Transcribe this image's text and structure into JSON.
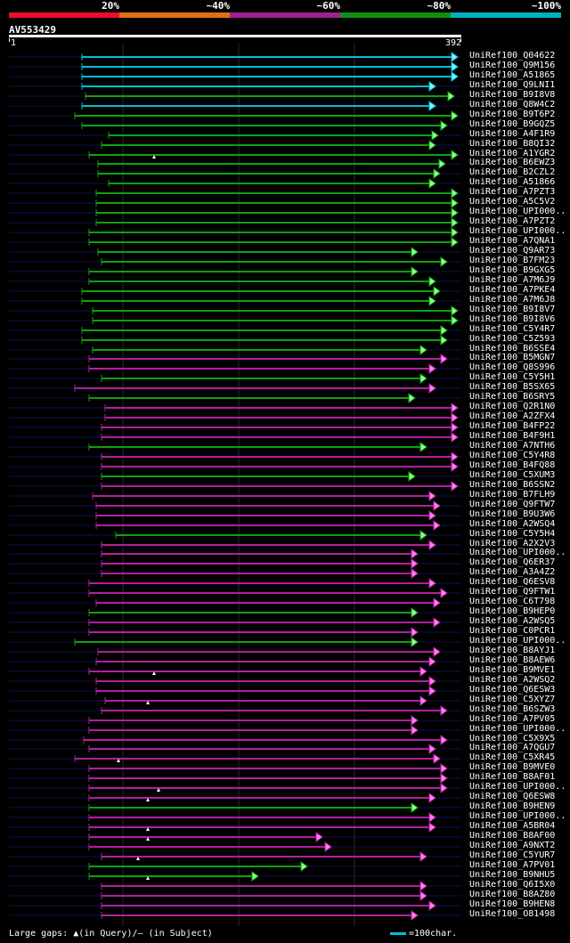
{
  "scale": {
    "segments": [
      {
        "label": "20%",
        "color": "#e8102a"
      },
      {
        "label": "~40%",
        "color": "#e07010"
      },
      {
        "label": "~60%",
        "color": "#a02090"
      },
      {
        "label": "~80%",
        "color": "#109010"
      },
      {
        "label": "~100%",
        "color": "#00b0c0"
      }
    ]
  },
  "query": {
    "id": "AV553429",
    "start": "1",
    "end": "392"
  },
  "legend": {
    "gaps": "Large gaps: ▲(in Query)/– (in Subject)",
    "scale": "=100char."
  },
  "hits": [
    {
      "name": "UniRef100_Q04622",
      "color": "#00c0d8"
    },
    {
      "name": "UniRef100_Q9M156",
      "color": "#00c0d8"
    },
    {
      "name": "UniRef100_A51865",
      "color": "#00c0d8"
    },
    {
      "name": "UniRef100_Q9LNI1",
      "color": "#00c0d8"
    },
    {
      "name": "UniRef100_B9I8V8",
      "color": "#10a010"
    },
    {
      "name": "UniRef100_Q8W4C2",
      "color": "#00c0d8"
    },
    {
      "name": "UniRef100_B9T6P2",
      "color": "#10a010"
    },
    {
      "name": "UniRef100_B9GQZ5",
      "color": "#10a010"
    },
    {
      "name": "UniRef100_A4F1R9",
      "color": "#10a010"
    },
    {
      "name": "UniRef100_B8QI32",
      "color": "#10a010"
    },
    {
      "name": "UniRef100_A1YGR2",
      "color": "#10a010"
    },
    {
      "name": "UniRef100_B6EWZ3",
      "color": "#10a010"
    },
    {
      "name": "UniRef100_B2CZL2",
      "color": "#10a010"
    },
    {
      "name": "UniRef100_A51866",
      "color": "#10a010"
    },
    {
      "name": "UniRef100_A7PZT3",
      "color": "#10a010"
    },
    {
      "name": "UniRef100_A5C5V2",
      "color": "#10a010"
    },
    {
      "name": "UniRef100_UPI000..",
      "color": "#10a010"
    },
    {
      "name": "UniRef100_A7PZT2",
      "color": "#10a010"
    },
    {
      "name": "UniRef100_UPI000..",
      "color": "#10a010"
    },
    {
      "name": "UniRef100_A7QNA1",
      "color": "#10a010"
    },
    {
      "name": "UniRef100_Q9AR73",
      "color": "#10a010"
    },
    {
      "name": "UniRef100_B7FM23",
      "color": "#10a010"
    },
    {
      "name": "UniRef100_B9GXG5",
      "color": "#10a010"
    },
    {
      "name": "UniRef100_A7M6J9",
      "color": "#10a010"
    },
    {
      "name": "UniRef100_A7PKE4",
      "color": "#10a010"
    },
    {
      "name": "UniRef100_A7M6J8",
      "color": "#10a010"
    },
    {
      "name": "UniRef100_B9I8V7",
      "color": "#10a010"
    },
    {
      "name": "UniRef100_B9I8V6",
      "color": "#10a010"
    },
    {
      "name": "UniRef100_C5Y4R7",
      "color": "#10a010"
    },
    {
      "name": "UniRef100_C5Z593",
      "color": "#10a010"
    },
    {
      "name": "UniRef100_B6SSE4",
      "color": "#10a010"
    },
    {
      "name": "UniRef100_B5MGN7",
      "color": "#b020a0"
    },
    {
      "name": "UniRef100_Q8S996",
      "color": "#b020a0"
    },
    {
      "name": "UniRef100_C5Y5H1",
      "color": "#10a010"
    },
    {
      "name": "UniRef100_B5SX65",
      "color": "#b020a0"
    },
    {
      "name": "UniRef100_B6SRY5",
      "color": "#10a010"
    },
    {
      "name": "UniRef100_Q2R1N0",
      "color": "#b020a0"
    },
    {
      "name": "UniRef100_A2ZFX4",
      "color": "#b020a0"
    },
    {
      "name": "UniRef100_B4FP22",
      "color": "#b020a0"
    },
    {
      "name": "UniRef100_B4F9H1",
      "color": "#b020a0"
    },
    {
      "name": "UniRef100_A7NTH6",
      "color": "#10a010"
    },
    {
      "name": "UniRef100_C5Y4R8",
      "color": "#b020a0"
    },
    {
      "name": "UniRef100_B4FQ88",
      "color": "#b020a0"
    },
    {
      "name": "UniRef100_C5XUM3",
      "color": "#10a010"
    },
    {
      "name": "UniRef100_B6SSN2",
      "color": "#b020a0"
    },
    {
      "name": "UniRef100_B7FLH9",
      "color": "#b020a0"
    },
    {
      "name": "UniRef100_Q9FTW7",
      "color": "#b020a0"
    },
    {
      "name": "UniRef100_B9U3W6",
      "color": "#b020a0"
    },
    {
      "name": "UniRef100_A2WSQ4",
      "color": "#b020a0"
    },
    {
      "name": "UniRef100_C5Y5H4",
      "color": "#10a010"
    },
    {
      "name": "UniRef100_A2X2V3",
      "color": "#b020a0"
    },
    {
      "name": "UniRef100_UPI000..",
      "color": "#b020a0"
    },
    {
      "name": "UniRef100_Q6ER37",
      "color": "#b020a0"
    },
    {
      "name": "UniRef100_A3A4Z2",
      "color": "#b020a0"
    },
    {
      "name": "UniRef100_Q6ESV8",
      "color": "#b020a0"
    },
    {
      "name": "UniRef100_Q9FTW1",
      "color": "#b020a0"
    },
    {
      "name": "UniRef100_C6T798",
      "color": "#b020a0"
    },
    {
      "name": "UniRef100_B9HEP0",
      "color": "#10a010"
    },
    {
      "name": "UniRef100_A2WSQ5",
      "color": "#b020a0"
    },
    {
      "name": "UniRef100_C0PCR1",
      "color": "#b020a0"
    },
    {
      "name": "UniRef100_UPI000..",
      "color": "#10a010"
    },
    {
      "name": "UniRef100_B8AYJ1",
      "color": "#b020a0"
    },
    {
      "name": "UniRef100_B8AEW6",
      "color": "#b020a0"
    },
    {
      "name": "UniRef100_B9MVE1",
      "color": "#b020a0"
    },
    {
      "name": "UniRef100_A2WSQ2",
      "color": "#b020a0"
    },
    {
      "name": "UniRef100_Q6ESW3",
      "color": "#b020a0"
    },
    {
      "name": "UniRef100_C5XYZ7",
      "color": "#b020a0"
    },
    {
      "name": "UniRef100_B6SZW3",
      "color": "#b020a0"
    },
    {
      "name": "UniRef100_A7PV05",
      "color": "#b020a0"
    },
    {
      "name": "UniRef100_UPI000..",
      "color": "#b020a0"
    },
    {
      "name": "UniRef100_C5X9X5",
      "color": "#b020a0"
    },
    {
      "name": "UniRef100_A7QGU7",
      "color": "#b020a0"
    },
    {
      "name": "UniRef100_C5XR45",
      "color": "#b020a0"
    },
    {
      "name": "UniRef100_B9MVE0",
      "color": "#b020a0"
    },
    {
      "name": "UniRef100_B8AF01",
      "color": "#b020a0"
    },
    {
      "name": "UniRef100_UPI000..",
      "color": "#b020a0"
    },
    {
      "name": "UniRef100_Q6ESW8",
      "color": "#b020a0"
    },
    {
      "name": "UniRef100_B9HEN9",
      "color": "#10a010"
    },
    {
      "name": "UniRef100_UPI000..",
      "color": "#b020a0"
    },
    {
      "name": "UniRef100_A5BR04",
      "color": "#b020a0"
    },
    {
      "name": "UniRef100_B8AF00",
      "color": "#b020a0"
    },
    {
      "name": "UniRef100_A9NXT2",
      "color": "#b020a0"
    },
    {
      "name": "UniRef100_C5YUR7",
      "color": "#b020a0"
    },
    {
      "name": "UniRef100_A7PV01",
      "color": "#10a010"
    },
    {
      "name": "UniRef100_B9NHU5",
      "color": "#10a010"
    },
    {
      "name": "UniRef100_Q6I5X0",
      "color": "#b020a0"
    },
    {
      "name": "UniRef100_B8AZ80",
      "color": "#b020a0"
    },
    {
      "name": "UniRef100_B9HEN8",
      "color": "#b020a0"
    },
    {
      "name": "UniRef100_O81498",
      "color": "#b020a0"
    }
  ]
}
